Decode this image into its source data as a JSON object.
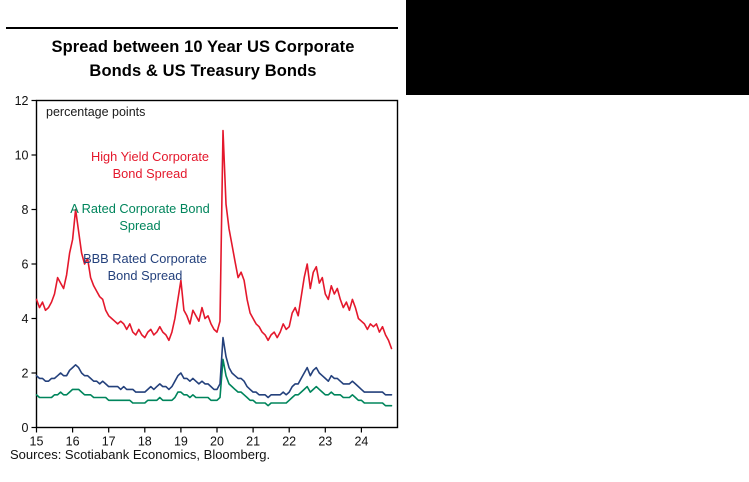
{
  "page": {
    "title_line1": "Spread between 10 Year US Corporate",
    "title_line2": "Bonds & US Treasury Bonds",
    "axis_note": "percentage points",
    "sources": "Sources: Scotiabank Economics, Bloomberg."
  },
  "legend": [
    {
      "line1": "High Yield Corporate",
      "line2": "Bond Spread",
      "color": "#e4182c"
    },
    {
      "line1": "A Rated Corporate Bond",
      "line2": "Spread",
      "color": "#00855c"
    },
    {
      "line1": "BBB Rated Corporate",
      "line2": "Bond Spread",
      "color": "#24417c"
    }
  ],
  "chart_data": {
    "type": "line",
    "title": "Spread between 10 Year US Corporate Bonds & US Treasury Bonds",
    "ylabel": "percentage points",
    "xlabel": "",
    "grid": false,
    "legend_position": "inside-top-left-stacked",
    "ylim": [
      0,
      12
    ],
    "xlim": [
      2015,
      2025
    ],
    "y_ticks": [
      0,
      2,
      4,
      6,
      8,
      10,
      12
    ],
    "x_ticks": [
      "15",
      "16",
      "17",
      "18",
      "19",
      "20",
      "21",
      "22",
      "23",
      "24"
    ],
    "x_tick_years": [
      2015,
      2016,
      2017,
      2018,
      2019,
      2020,
      2021,
      2022,
      2023,
      2024
    ],
    "x_start": 2015.0,
    "x_step_years": 0.0833333,
    "series": [
      {
        "name": "A Rated Corporate Bond Spread",
        "color": "#00855c",
        "values": [
          1.2,
          1.1,
          1.1,
          1.1,
          1.1,
          1.1,
          1.2,
          1.2,
          1.3,
          1.2,
          1.2,
          1.3,
          1.4,
          1.4,
          1.4,
          1.3,
          1.2,
          1.2,
          1.2,
          1.1,
          1.1,
          1.1,
          1.1,
          1.1,
          1.0,
          1.0,
          1.0,
          1.0,
          1.0,
          1.0,
          1.0,
          1.0,
          0.9,
          0.9,
          0.9,
          0.9,
          0.9,
          1.0,
          1.0,
          1.0,
          1.0,
          1.1,
          1.0,
          1.0,
          1.0,
          1.0,
          1.1,
          1.3,
          1.3,
          1.2,
          1.2,
          1.1,
          1.2,
          1.1,
          1.1,
          1.1,
          1.1,
          1.1,
          1.0,
          1.0,
          1.0,
          1.1,
          2.5,
          1.9,
          1.6,
          1.5,
          1.4,
          1.3,
          1.3,
          1.2,
          1.1,
          1.0,
          1.0,
          0.9,
          0.9,
          0.9,
          0.9,
          0.8,
          0.9,
          0.9,
          0.9,
          0.9,
          0.9,
          0.9,
          1.0,
          1.1,
          1.2,
          1.2,
          1.3,
          1.4,
          1.5,
          1.3,
          1.4,
          1.5,
          1.4,
          1.3,
          1.2,
          1.2,
          1.3,
          1.2,
          1.2,
          1.2,
          1.1,
          1.1,
          1.1,
          1.2,
          1.1,
          1.0,
          1.0,
          0.9,
          0.9,
          0.9,
          0.9,
          0.9,
          0.9,
          0.9,
          0.8,
          0.8,
          0.8
        ]
      },
      {
        "name": "BBB Rated Corporate Bond Spread",
        "color": "#24417c",
        "values": [
          1.9,
          1.8,
          1.8,
          1.7,
          1.7,
          1.8,
          1.8,
          1.9,
          2.0,
          1.9,
          1.9,
          2.1,
          2.2,
          2.3,
          2.2,
          2.0,
          1.9,
          1.9,
          1.8,
          1.7,
          1.7,
          1.6,
          1.7,
          1.6,
          1.5,
          1.5,
          1.5,
          1.5,
          1.4,
          1.5,
          1.4,
          1.4,
          1.4,
          1.3,
          1.3,
          1.3,
          1.3,
          1.4,
          1.5,
          1.4,
          1.5,
          1.6,
          1.5,
          1.5,
          1.4,
          1.5,
          1.7,
          1.9,
          2.0,
          1.8,
          1.8,
          1.7,
          1.8,
          1.7,
          1.6,
          1.7,
          1.6,
          1.6,
          1.5,
          1.4,
          1.4,
          1.6,
          3.3,
          2.6,
          2.2,
          2.0,
          1.9,
          1.8,
          1.8,
          1.7,
          1.5,
          1.4,
          1.3,
          1.3,
          1.2,
          1.2,
          1.2,
          1.1,
          1.2,
          1.2,
          1.2,
          1.2,
          1.3,
          1.2,
          1.3,
          1.5,
          1.6,
          1.6,
          1.8,
          2.0,
          2.2,
          1.9,
          2.1,
          2.2,
          2.0,
          1.9,
          1.8,
          1.7,
          1.9,
          1.8,
          1.8,
          1.7,
          1.6,
          1.6,
          1.6,
          1.7,
          1.6,
          1.5,
          1.4,
          1.3,
          1.3,
          1.3,
          1.3,
          1.3,
          1.3,
          1.3,
          1.2,
          1.2,
          1.2
        ]
      },
      {
        "name": "High Yield Corporate Bond Spread",
        "color": "#e4182c",
        "values": [
          4.7,
          4.4,
          4.6,
          4.3,
          4.4,
          4.6,
          4.9,
          5.5,
          5.3,
          5.1,
          5.6,
          6.4,
          6.9,
          8.0,
          7.2,
          6.4,
          6.0,
          6.2,
          5.5,
          5.2,
          5.0,
          4.8,
          4.7,
          4.3,
          4.1,
          4.0,
          3.9,
          3.8,
          3.9,
          3.8,
          3.6,
          3.8,
          3.5,
          3.4,
          3.6,
          3.4,
          3.3,
          3.5,
          3.6,
          3.4,
          3.5,
          3.7,
          3.5,
          3.4,
          3.2,
          3.5,
          4.0,
          4.7,
          5.4,
          4.3,
          4.1,
          3.8,
          4.3,
          4.1,
          3.9,
          4.4,
          4.0,
          4.1,
          3.8,
          3.6,
          3.5,
          3.9,
          10.9,
          8.2,
          7.3,
          6.7,
          6.1,
          5.5,
          5.7,
          5.4,
          4.7,
          4.2,
          4.0,
          3.8,
          3.7,
          3.5,
          3.4,
          3.2,
          3.4,
          3.5,
          3.3,
          3.5,
          3.8,
          3.6,
          3.7,
          4.2,
          4.4,
          4.1,
          4.8,
          5.5,
          6.0,
          5.1,
          5.7,
          5.9,
          5.3,
          5.5,
          4.9,
          4.7,
          5.2,
          4.9,
          5.1,
          4.7,
          4.4,
          4.6,
          4.3,
          4.7,
          4.4,
          4.0,
          3.9,
          3.8,
          3.6,
          3.8,
          3.7,
          3.8,
          3.5,
          3.7,
          3.4,
          3.2,
          2.9
        ]
      }
    ]
  }
}
